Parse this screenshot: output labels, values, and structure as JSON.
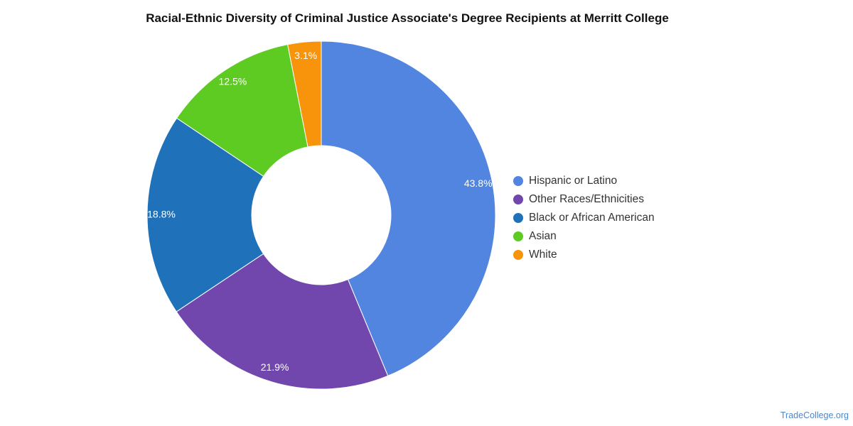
{
  "chart_data": {
    "type": "pie",
    "variant": "donut",
    "title": "Racial-Ethnic Diversity of Criminal Justice Associate's Degree Recipients at Merritt College",
    "categories": [
      "Hispanic or Latino",
      "Other Races/Ethnicities",
      "Black or African American",
      "Asian",
      "White"
    ],
    "values": [
      43.8,
      21.9,
      18.8,
      12.5,
      3.1
    ],
    "data_labels": [
      "43.8%",
      "21.9%",
      "18.8%",
      "12.5%",
      "3.1%"
    ],
    "colors": [
      "#5285e0",
      "#7147ae",
      "#1f72b9",
      "#5ecb22",
      "#f7940b"
    ],
    "legend_position": "right"
  },
  "watermark": "TradeCollege.org"
}
